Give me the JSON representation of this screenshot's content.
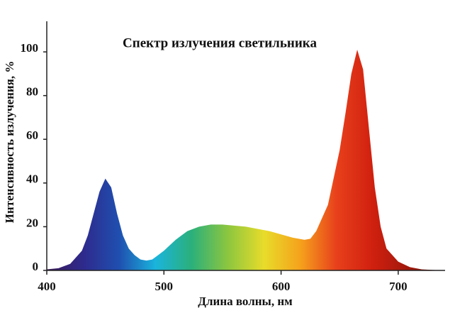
{
  "chart_data": {
    "type": "area",
    "title": "Спектр излучения светильника",
    "x_label": "Длина волны, нм",
    "y_label": "Интенсивность излучения, %",
    "x": [
      400,
      410,
      420,
      430,
      435,
      440,
      445,
      450,
      455,
      460,
      465,
      470,
      475,
      480,
      485,
      490,
      495,
      500,
      510,
      520,
      530,
      540,
      550,
      560,
      570,
      580,
      590,
      600,
      610,
      620,
      625,
      630,
      640,
      650,
      655,
      660,
      665,
      670,
      675,
      680,
      685,
      690,
      700,
      710,
      720,
      730,
      740
    ],
    "values": [
      0.5,
      1,
      3,
      9,
      16,
      26,
      36,
      42,
      38,
      26,
      16,
      10,
      7,
      5,
      4.5,
      5,
      7,
      9,
      14,
      18,
      20,
      21,
      21,
      20.5,
      20,
      19,
      18,
      16.5,
      15,
      14,
      14.5,
      18,
      30,
      55,
      72,
      90,
      101,
      92,
      65,
      38,
      20,
      10,
      4,
      1.5,
      0.5,
      0.2,
      0
    ],
    "colors": [
      "#3b1a5a",
      "#2e2a8c",
      "#1f4fb0",
      "#1ab4dc",
      "#2bb07a",
      "#8cc63f",
      "#e8dc2a",
      "#f5a21c",
      "#e8401c",
      "#d0200f",
      "#a0180c",
      "#7a1408"
    ],
    "xlim": [
      400,
      740
    ],
    "xticks": [
      400,
      500,
      600,
      700
    ],
    "ylim": [
      0,
      114
    ],
    "yticks": [
      0,
      20,
      40,
      60,
      80,
      100
    ]
  }
}
